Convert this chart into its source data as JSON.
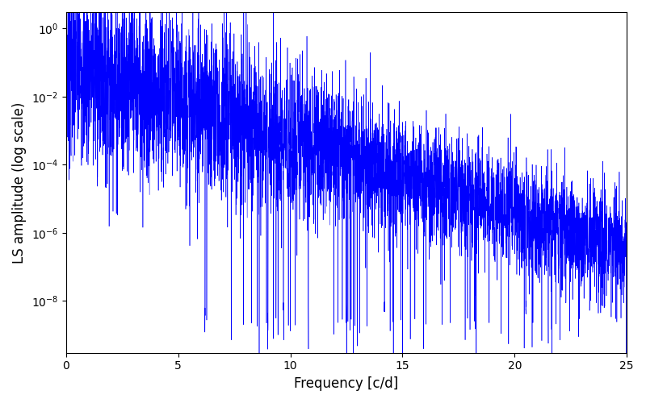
{
  "xlabel": "Frequency [c/d]",
  "ylabel": "LS amplitude (log scale)",
  "line_color": "#0000ff",
  "xlim": [
    0,
    25
  ],
  "ylim": [
    3e-10,
    3.0
  ],
  "xticks": [
    0,
    5,
    10,
    15,
    20,
    25
  ],
  "figsize": [
    8.0,
    5.0
  ],
  "dpi": 100,
  "seed": 7,
  "n_points": 5000,
  "freq_max": 25.0,
  "background_color": "#ffffff",
  "linewidth": 0.4
}
